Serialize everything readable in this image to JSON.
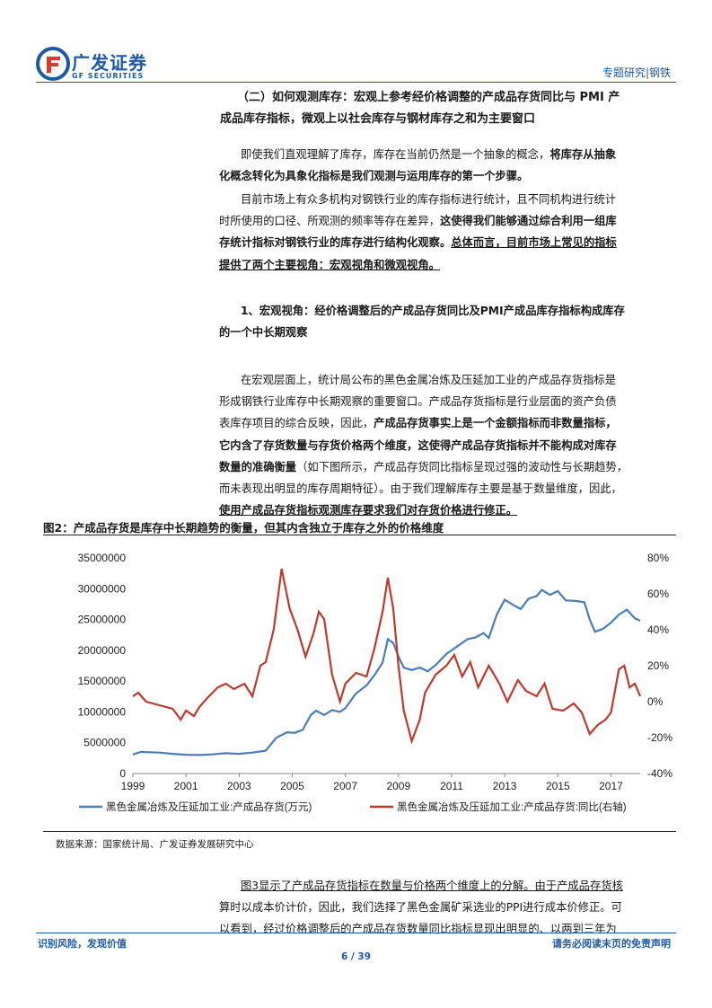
{
  "header": {
    "logo_cn": "广发证券",
    "logo_en": "GF SECURITIES",
    "report_type": "专题研究|钢铁",
    "colors": {
      "brand": "#1d5aa6"
    }
  },
  "section": {
    "heading_line1": "（二）如何观测库存：宏观上参考经价格调整的产成品存货同比与 PMI 产",
    "heading_line2": "成品库存指标，微观上以社会库存与钢材库存之和为主要窗口"
  },
  "para1": {
    "line1_normal": "即使我们直观理解了库存，库存在当前仍然是一个抽象的概念，",
    "line1_bold": "将库存从抽象",
    "line2_bold": "化概念转化为具象化指标是我们观测与运用库存的第一个步骤。"
  },
  "para2": {
    "line1": "目前市场上有众多机构对钢铁行业的库存指标进行统计，且不同机构进行统计",
    "line2_normal": "时所使用的口径、所观测的频率等存在差异，",
    "line2_bold": "这使得我们能够通过综合利用一组库",
    "line3_bold": "存统计指标对钢铁行业的库存进行结构化观察。",
    "line3_bold_ul": "总体而言，目前市场上常见的指标",
    "line4_bold_ul": "提供了两个主要视角：宏观视角和微观视角。"
  },
  "subsection": {
    "line1": "1、宏观视角：经价格调整后的产成品存货同比及PMI产成品库存指标构成库存",
    "line2": "的一个中长期观察"
  },
  "para3": {
    "line1": "在宏观层面上，统计局公布的黑色金属冶炼及压延加工业的产成品存货指标是",
    "line2": "形成钢铁行业库存中长期观察的重要窗口。产成品存货指标是行业层面的资产负债",
    "line3_normal": "表库存项目的综合反映，因此，",
    "line3_bold": "产成品存货事实上是一个金额指标而非数量指标，",
    "line4_bold": "它内含了存货数量与存货价格两个维度，这使得产成品存货指标并不能构成对库存",
    "line5_bold": "数量的准确衡量",
    "line5_normal": "（如下图所示，产成品存货同比指标呈现过强的波动性与长期趋势，",
    "line6": "而未表现出明显的库存周期特征）。由于我们理解库存主要是基于数量维度，因此，",
    "line7_bold_ul": "使用产成品存货指标观测库存要求我们对存货价格进行修正。"
  },
  "figure": {
    "title": "图2：产成品存货是库存中长期趋势的衡量，但其内含独立于库存之外的价格维度",
    "source": "数据来源：国家统计局、广发证券发展研究中心"
  },
  "chart_data": {
    "type": "line",
    "title": "",
    "x_tick_labels": [
      "1999",
      "2001",
      "2003",
      "2005",
      "2007",
      "2009",
      "2011",
      "2013",
      "2015",
      "2017"
    ],
    "y_left_ticks": [
      "0",
      "5000000",
      "10000000",
      "15000000",
      "20000000",
      "25000000",
      "30000000",
      "35000000"
    ],
    "y_right_ticks": [
      "-40%",
      "-20%",
      "0%",
      "20%",
      "40%",
      "60%",
      "80%"
    ],
    "ylim_left": [
      0,
      35000000
    ],
    "ylim_right": [
      -40,
      80
    ],
    "xlim": [
      1999,
      2018.1
    ],
    "legend_position": "bottom",
    "series": [
      {
        "name": "黑色金属冶炼及压延加工业:产成品存货(万元)",
        "axis": "left",
        "color": "#4a7ebb",
        "points": [
          [
            1999.0,
            3100000
          ],
          [
            1999.3,
            3500000
          ],
          [
            2000.0,
            3400000
          ],
          [
            2000.5,
            3200000
          ],
          [
            2001.0,
            3050000
          ],
          [
            2001.5,
            3000000
          ],
          [
            2002.0,
            3100000
          ],
          [
            2002.5,
            3300000
          ],
          [
            2003.0,
            3200000
          ],
          [
            2003.5,
            3400000
          ],
          [
            2004.0,
            3700000
          ],
          [
            2004.4,
            5800000
          ],
          [
            2004.8,
            6700000
          ],
          [
            2005.1,
            6600000
          ],
          [
            2005.4,
            7100000
          ],
          [
            2005.7,
            9500000
          ],
          [
            2005.9,
            10200000
          ],
          [
            2006.2,
            9500000
          ],
          [
            2006.5,
            10300000
          ],
          [
            2006.8,
            10000000
          ],
          [
            2007.0,
            10600000
          ],
          [
            2007.4,
            13000000
          ],
          [
            2007.8,
            14300000
          ],
          [
            2008.1,
            16000000
          ],
          [
            2008.4,
            18000000
          ],
          [
            2008.6,
            21800000
          ],
          [
            2008.8,
            21200000
          ],
          [
            2009.0,
            19000000
          ],
          [
            2009.2,
            17200000
          ],
          [
            2009.5,
            16800000
          ],
          [
            2009.8,
            17200000
          ],
          [
            2010.1,
            16600000
          ],
          [
            2010.4,
            17600000
          ],
          [
            2010.8,
            19400000
          ],
          [
            2011.2,
            20600000
          ],
          [
            2011.6,
            21800000
          ],
          [
            2011.9,
            22100000
          ],
          [
            2012.2,
            22800000
          ],
          [
            2012.4,
            22000000
          ],
          [
            2012.7,
            25800000
          ],
          [
            2013.0,
            28200000
          ],
          [
            2013.3,
            27400000
          ],
          [
            2013.6,
            26700000
          ],
          [
            2013.9,
            28400000
          ],
          [
            2014.2,
            28800000
          ],
          [
            2014.4,
            29800000
          ],
          [
            2014.7,
            29000000
          ],
          [
            2015.0,
            29600000
          ],
          [
            2015.3,
            28100000
          ],
          [
            2015.7,
            28000000
          ],
          [
            2016.0,
            27800000
          ],
          [
            2016.2,
            25000000
          ],
          [
            2016.4,
            23000000
          ],
          [
            2016.7,
            23500000
          ],
          [
            2017.0,
            24500000
          ],
          [
            2017.3,
            25800000
          ],
          [
            2017.6,
            26600000
          ],
          [
            2017.9,
            25200000
          ],
          [
            2018.1,
            24800000
          ]
        ]
      },
      {
        "name": "黑色金属冶炼及压延加工业:产成品存货:同比(右轴)",
        "axis": "right",
        "color": "#c0392b",
        "points": [
          [
            1999.0,
            3
          ],
          [
            1999.2,
            5
          ],
          [
            1999.5,
            0
          ],
          [
            2000.0,
            -2
          ],
          [
            2000.5,
            -4
          ],
          [
            2000.8,
            -10
          ],
          [
            2001.0,
            -5
          ],
          [
            2001.3,
            -8
          ],
          [
            2001.5,
            -3
          ],
          [
            2001.8,
            2
          ],
          [
            2002.2,
            8
          ],
          [
            2002.5,
            10
          ],
          [
            2002.8,
            7
          ],
          [
            2003.2,
            10
          ],
          [
            2003.5,
            3
          ],
          [
            2003.8,
            20
          ],
          [
            2004.0,
            22
          ],
          [
            2004.3,
            40
          ],
          [
            2004.6,
            74
          ],
          [
            2004.9,
            52
          ],
          [
            2005.2,
            40
          ],
          [
            2005.5,
            25
          ],
          [
            2005.8,
            38
          ],
          [
            2006.0,
            50
          ],
          [
            2006.2,
            46
          ],
          [
            2006.5,
            15
          ],
          [
            2006.8,
            0
          ],
          [
            2007.0,
            10
          ],
          [
            2007.4,
            16
          ],
          [
            2007.8,
            14
          ],
          [
            2008.1,
            30
          ],
          [
            2008.4,
            50
          ],
          [
            2008.6,
            69
          ],
          [
            2008.8,
            52
          ],
          [
            2009.0,
            20
          ],
          [
            2009.2,
            -5
          ],
          [
            2009.5,
            -22
          ],
          [
            2009.8,
            -10
          ],
          [
            2010.0,
            5
          ],
          [
            2010.4,
            15
          ],
          [
            2010.8,
            20
          ],
          [
            2011.1,
            26
          ],
          [
            2011.4,
            14
          ],
          [
            2011.7,
            22
          ],
          [
            2012.0,
            8
          ],
          [
            2012.4,
            20
          ],
          [
            2012.8,
            10
          ],
          [
            2013.1,
            0
          ],
          [
            2013.5,
            12
          ],
          [
            2013.8,
            6
          ],
          [
            2014.2,
            3
          ],
          [
            2014.5,
            10
          ],
          [
            2014.8,
            -4
          ],
          [
            2015.2,
            -5
          ],
          [
            2015.6,
            -1
          ],
          [
            2015.9,
            -6
          ],
          [
            2016.2,
            -18
          ],
          [
            2016.5,
            -13
          ],
          [
            2016.8,
            -10
          ],
          [
            2017.0,
            -6
          ],
          [
            2017.3,
            18
          ],
          [
            2017.5,
            20
          ],
          [
            2017.7,
            8
          ],
          [
            2017.9,
            10
          ],
          [
            2018.1,
            3
          ]
        ]
      }
    ]
  },
  "para4": {
    "line1": "图3显示了产成品存货指标在数量与价格两个维度上的分解。由于产成品存货核",
    "line2": "算时以成本价计价，因此，我们选择了黑色金属矿采选业的PPI进行成本价修正。可",
    "line3": "以看到，经过价格调整后的产成品存货数量同比指标显现出明显的、以两到三年为"
  },
  "footer": {
    "left": "识别风险，发现价值",
    "page": "6 / 39",
    "right": "请务必阅读末页的免责声明"
  }
}
